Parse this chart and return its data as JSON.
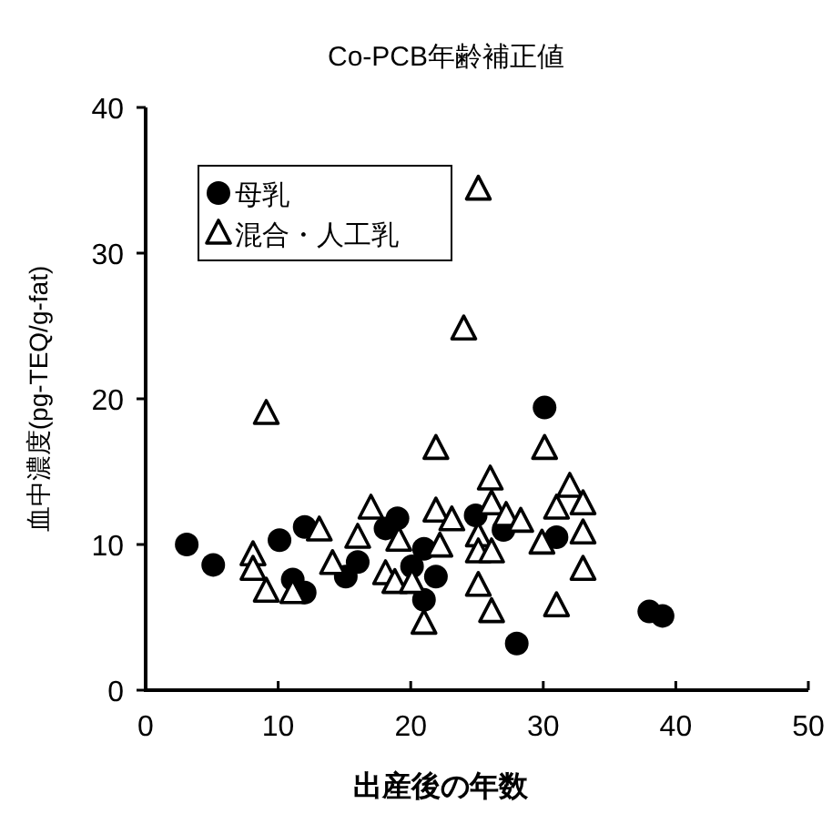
{
  "chart_data": {
    "type": "scatter",
    "title": "Co-PCB年齢補正値",
    "xlabel": "出産後の年数",
    "ylabel": "血中濃度(pg-TEQ/g-fat)",
    "xlim": [
      0,
      50
    ],
    "xticks": [
      0,
      10,
      20,
      30,
      40,
      50
    ],
    "ylim": [
      0,
      40
    ],
    "yticks": [
      0,
      10,
      20,
      30,
      40
    ],
    "grid": false,
    "legend": "top left",
    "series": [
      {
        "name": "母乳",
        "color": "#000000",
        "marker": "circle",
        "x": [
          3.1,
          5.1,
          10.1,
          12.0,
          11.1,
          12.0,
          15.1,
          16.0,
          18.1,
          19.0,
          21.0,
          20.1,
          21.9,
          21.0,
          24.9,
          27.0,
          31.0,
          28.0,
          38.0,
          39.0,
          30.1
        ],
        "values": [
          10.0,
          8.6,
          10.3,
          11.2,
          7.6,
          6.7,
          7.8,
          8.8,
          11.1,
          11.8,
          9.7,
          8.5,
          7.8,
          6.2,
          12.0,
          11.0,
          10.5,
          3.2,
          5.4,
          5.1,
          19.4
        ]
      },
      {
        "name": "混合・人工乳",
        "color": "#000000",
        "marker": "triangle",
        "x": [
          8.1,
          8.1,
          9.1,
          11.1,
          13.1,
          14.1,
          16.0,
          17.0,
          18.1,
          19.1,
          18.8,
          20.1,
          21.9,
          23.1,
          22.2,
          21.0,
          26.0,
          26.1,
          25.1,
          25.1,
          26.1,
          27.2,
          28.3,
          25.1,
          26.1,
          29.9,
          31.0,
          32.0,
          31.0,
          33.0,
          33.0,
          33.0,
          25.1,
          24.0,
          9.1,
          21.9,
          30.1
        ],
        "values": [
          9.3,
          8.3,
          6.8,
          6.7,
          11.0,
          8.7,
          10.5,
          12.5,
          8.0,
          10.3,
          7.4,
          7.4,
          12.3,
          11.7,
          9.9,
          4.6,
          14.5,
          12.8,
          10.6,
          9.5,
          9.5,
          12.0,
          11.6,
          7.2,
          5.4,
          10.1,
          5.8,
          14.0,
          12.5,
          12.8,
          10.8,
          8.3,
          34.4,
          24.8,
          19.0,
          16.6,
          16.6
        ]
      }
    ]
  }
}
